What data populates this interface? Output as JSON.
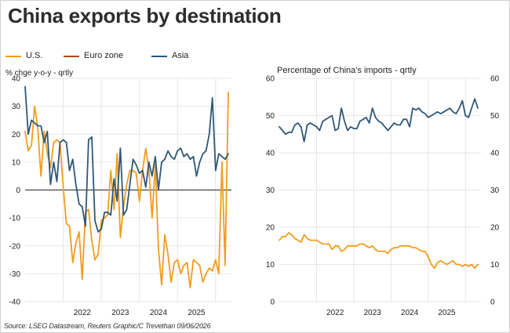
{
  "title": "China exports by destination",
  "source": "Source: LSEG Datastream, Reuters Graphic/C Trevethan 09/06/2026",
  "legend": [
    {
      "label": "U.S.",
      "color": "#f39c1e"
    },
    {
      "label": "Euro zone",
      "color": "#a64b12"
    },
    {
      "label": "Asia",
      "color": "#2f5877"
    }
  ],
  "colors": {
    "us": "#f39c1e",
    "eurozone": "#a64b12",
    "asia": "#2f5877",
    "grid": "#e6e6e6",
    "zero": "#222222"
  },
  "chart_data": [
    {
      "type": "line",
      "title": "",
      "ylabel": "% chge y-o-y - qrtly",
      "xlabel": "",
      "ylim": [
        -40,
        40
      ],
      "yticks": [
        40,
        30,
        20,
        10,
        0,
        -10,
        -20,
        -30,
        -40
      ],
      "xticks": [
        "2022",
        "2023",
        "2024",
        "2025"
      ],
      "xrange": [
        "2021-01",
        "2026-06"
      ],
      "grid": true,
      "legend_position": "top",
      "series": [
        {
          "name": "U.S.",
          "x": [
            "2021-01",
            "2021-02",
            "2021-03",
            "2021-04",
            "2021-05",
            "2021-06",
            "2021-07",
            "2021-08",
            "2021-09",
            "2021-10",
            "2021-11",
            "2021-12",
            "2022-01",
            "2022-02",
            "2022-03",
            "2022-04",
            "2022-05",
            "2022-06",
            "2022-07",
            "2022-08",
            "2022-09",
            "2022-10",
            "2022-11",
            "2022-12",
            "2023-01",
            "2023-02",
            "2023-03",
            "2023-04",
            "2023-05",
            "2023-06",
            "2023-07",
            "2023-08",
            "2023-09",
            "2023-10",
            "2023-11",
            "2023-12",
            "2024-01",
            "2024-02",
            "2024-03",
            "2024-04",
            "2024-05",
            "2024-06",
            "2024-07",
            "2024-08",
            "2024-09",
            "2024-10",
            "2024-11",
            "2024-12",
            "2025-01",
            "2025-02",
            "2025-03",
            "2025-04",
            "2025-05",
            "2025-06",
            "2025-07",
            "2025-08",
            "2025-09",
            "2025-10",
            "2025-11",
            "2025-12",
            "2026-01",
            "2026-02",
            "2026-03",
            "2026-04",
            "2026-05"
          ],
          "values": [
            21,
            14,
            16,
            30,
            22,
            5,
            21,
            13,
            8,
            17,
            18,
            17,
            1,
            -12,
            -13,
            -26,
            -19,
            -15,
            -32,
            -8,
            -7,
            -18,
            -25,
            -23,
            -11,
            -10,
            -9,
            7,
            -7,
            13,
            -17,
            -6,
            2,
            7,
            7,
            6,
            -4,
            7,
            15,
            7,
            -10,
            9,
            -21,
            -34,
            -16,
            -23,
            -33,
            -26,
            -25,
            -30,
            -27,
            -26,
            -35,
            -25,
            -26,
            -27,
            -33,
            -30,
            -28,
            -29,
            -25,
            -30,
            10,
            -27,
            35
          ]
        },
        {
          "name": "Asia",
          "x": [
            "2021-01",
            "2021-02",
            "2021-03",
            "2021-04",
            "2021-05",
            "2021-06",
            "2021-07",
            "2021-08",
            "2021-09",
            "2021-10",
            "2021-11",
            "2021-12",
            "2022-01",
            "2022-02",
            "2022-03",
            "2022-04",
            "2022-05",
            "2022-06",
            "2022-07",
            "2022-08",
            "2022-09",
            "2022-10",
            "2022-11",
            "2022-12",
            "2023-01",
            "2023-02",
            "2023-03",
            "2023-04",
            "2023-05",
            "2023-06",
            "2023-07",
            "2023-08",
            "2023-09",
            "2023-10",
            "2023-11",
            "2023-12",
            "2024-01",
            "2024-02",
            "2024-03",
            "2024-04",
            "2024-05",
            "2024-06",
            "2024-07",
            "2024-08",
            "2024-09",
            "2024-10",
            "2024-11",
            "2024-12",
            "2025-01",
            "2025-02",
            "2025-03",
            "2025-04",
            "2025-05",
            "2025-06",
            "2025-07",
            "2025-08",
            "2025-09",
            "2025-10",
            "2025-11",
            "2025-12",
            "2026-01",
            "2026-02",
            "2026-03",
            "2026-04",
            "2026-05"
          ],
          "values": [
            37,
            20,
            25,
            24,
            23,
            23,
            17,
            21,
            2,
            10,
            3,
            17,
            18,
            17,
            7,
            11,
            2,
            -5,
            -6,
            -13,
            18,
            19,
            -11,
            -15,
            -14,
            -8,
            -8,
            -9,
            4,
            -4,
            15,
            -9,
            -7,
            2,
            11,
            9,
            6,
            7,
            1,
            10,
            5,
            12,
            0,
            10,
            11,
            14,
            12,
            11,
            14,
            15,
            12,
            13,
            11,
            12,
            5,
            10,
            13,
            14,
            20,
            33,
            7,
            13,
            12,
            11,
            13
          ]
        }
      ]
    },
    {
      "type": "line",
      "title": "Percentage of China's imports - qrtly",
      "xlabel": "",
      "ylabel": "",
      "ylim": [
        0,
        60
      ],
      "yticks": [
        60,
        50,
        40,
        30,
        20,
        10,
        0
      ],
      "xticks": [
        "2022",
        "2023",
        "2024",
        "2025"
      ],
      "xrange": [
        "2021-01",
        "2026-06"
      ],
      "grid": true,
      "series": [
        {
          "name": "Asia",
          "x": [
            "2021-01",
            "2021-02",
            "2021-03",
            "2021-04",
            "2021-05",
            "2021-06",
            "2021-07",
            "2021-08",
            "2021-09",
            "2021-10",
            "2021-11",
            "2021-12",
            "2022-01",
            "2022-02",
            "2022-03",
            "2022-04",
            "2022-05",
            "2022-06",
            "2022-07",
            "2022-08",
            "2022-09",
            "2022-10",
            "2022-11",
            "2022-12",
            "2023-01",
            "2023-02",
            "2023-03",
            "2023-04",
            "2023-05",
            "2023-06",
            "2023-07",
            "2023-08",
            "2023-09",
            "2023-10",
            "2023-11",
            "2023-12",
            "2024-01",
            "2024-02",
            "2024-03",
            "2024-04",
            "2024-05",
            "2024-06",
            "2024-07",
            "2024-08",
            "2024-09",
            "2024-10",
            "2024-11",
            "2024-12",
            "2025-01",
            "2025-02",
            "2025-03",
            "2025-04",
            "2025-05",
            "2025-06",
            "2025-07",
            "2025-08",
            "2025-09",
            "2025-10",
            "2025-11",
            "2025-12",
            "2026-01",
            "2026-02",
            "2026-03",
            "2026-04",
            "2026-05"
          ],
          "values": [
            47,
            46,
            45,
            45.5,
            45.5,
            47.5,
            48,
            47,
            43,
            47.5,
            48,
            47.5,
            47,
            46,
            48.5,
            49,
            49.5,
            50,
            46,
            46.5,
            52,
            48.5,
            46,
            47,
            46.5,
            46.5,
            48.5,
            49,
            49.5,
            48,
            52,
            49.5,
            48.5,
            48,
            47,
            46,
            47,
            48,
            47.5,
            47.5,
            49,
            49,
            47,
            52,
            51.5,
            52,
            51,
            50.5,
            49.5,
            50,
            50.5,
            51,
            50.5,
            51,
            51.5,
            52,
            51,
            50.5,
            52,
            54,
            50,
            49.5,
            52,
            54.5,
            52
          ]
        },
        {
          "name": "U.S.",
          "x": [
            "2021-01",
            "2021-02",
            "2021-03",
            "2021-04",
            "2021-05",
            "2021-06",
            "2021-07",
            "2021-08",
            "2021-09",
            "2021-10",
            "2021-11",
            "2021-12",
            "2022-01",
            "2022-02",
            "2022-03",
            "2022-04",
            "2022-05",
            "2022-06",
            "2022-07",
            "2022-08",
            "2022-09",
            "2022-10",
            "2022-11",
            "2022-12",
            "2023-01",
            "2023-02",
            "2023-03",
            "2023-04",
            "2023-05",
            "2023-06",
            "2023-07",
            "2023-08",
            "2023-09",
            "2023-10",
            "2023-11",
            "2023-12",
            "2024-01",
            "2024-02",
            "2024-03",
            "2024-04",
            "2024-05",
            "2024-06",
            "2024-07",
            "2024-08",
            "2024-09",
            "2024-10",
            "2024-11",
            "2024-12",
            "2025-01",
            "2025-02",
            "2025-03",
            "2025-04",
            "2025-05",
            "2025-06",
            "2025-07",
            "2025-08",
            "2025-09",
            "2025-10",
            "2025-11",
            "2025-12",
            "2026-01",
            "2026-02",
            "2026-03",
            "2026-04",
            "2026-05"
          ],
          "values": [
            16.5,
            17.5,
            17.5,
            18.5,
            18,
            17,
            16.5,
            16,
            18,
            17,
            16.5,
            16.5,
            16.5,
            16,
            15.5,
            15.5,
            15.5,
            14,
            15,
            15,
            13.5,
            14,
            15,
            15,
            15,
            15,
            15.5,
            15.5,
            15,
            14.5,
            15,
            14,
            13.5,
            13.5,
            13.5,
            13,
            14,
            14.5,
            14.5,
            15,
            15,
            15,
            15,
            14.5,
            14.5,
            14,
            13.5,
            13.5,
            12,
            10,
            9,
            10.5,
            11,
            10.5,
            10,
            10.5,
            11,
            10,
            10,
            9.5,
            10,
            9.5,
            10,
            9,
            10
          ]
        }
      ]
    }
  ]
}
